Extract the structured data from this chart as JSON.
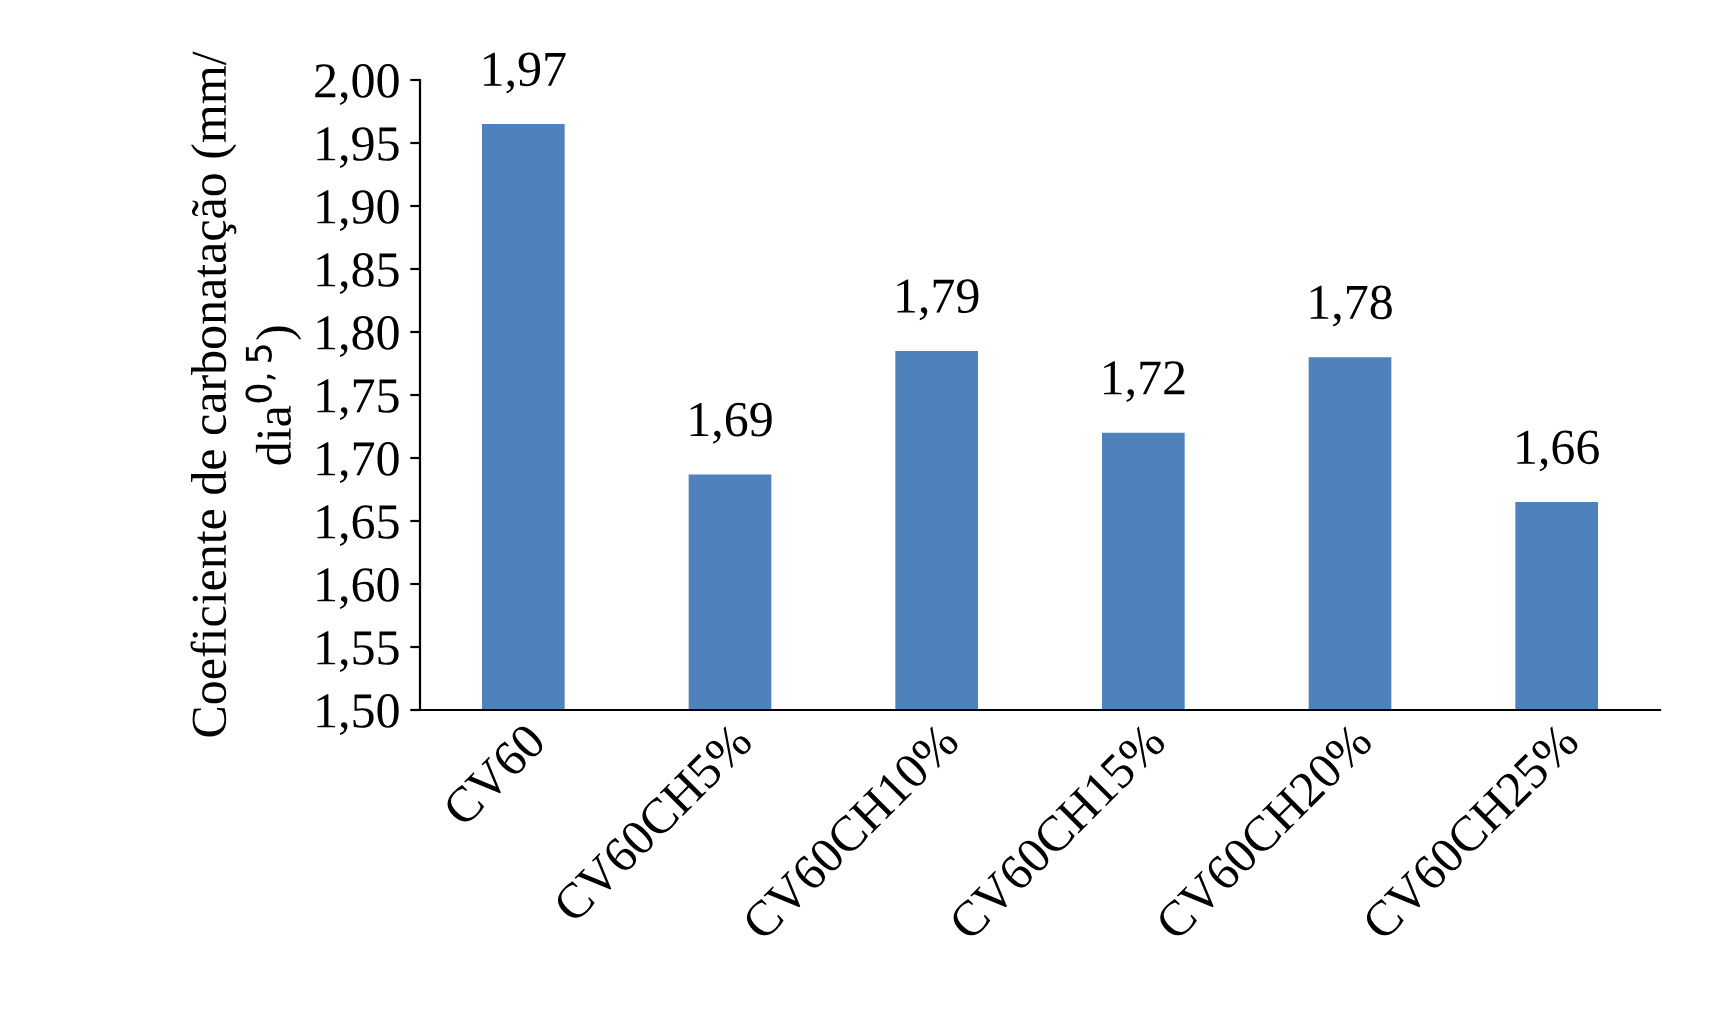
{
  "chart_data": {
    "type": "bar",
    "ylabel": "Coeficiente de carbonatação (mm/\ndia$^{0,5}$)",
    "categories": [
      "CV60",
      "CV60CH5%",
      "CV60CH10%",
      "CV60CH15%",
      "CV60CH20%",
      "CV60CH25%"
    ],
    "values": [
      1.965,
      1.687,
      1.785,
      1.72,
      1.78,
      1.665
    ],
    "value_labels": [
      "1,97",
      "1,69",
      "1,79",
      "1,72",
      "1,78",
      "1,66"
    ],
    "color": "#4f81bd",
    "ylim": [
      1.5,
      2.0
    ],
    "yticks": [
      {
        "value": 1.5,
        "label": "1,50"
      },
      {
        "value": 1.55,
        "label": "1,55"
      },
      {
        "value": 1.6,
        "label": "1,60"
      },
      {
        "value": 1.65,
        "label": "1,65"
      },
      {
        "value": 1.7,
        "label": "1,70"
      },
      {
        "value": 1.75,
        "label": "1,75"
      },
      {
        "value": 1.8,
        "label": "1,80"
      },
      {
        "value": 1.85,
        "label": "1,85"
      },
      {
        "value": 1.9,
        "label": "1,90"
      },
      {
        "value": 1.95,
        "label": "1,95"
      },
      {
        "value": 2.0,
        "label": "2,00"
      }
    ],
    "grid": false,
    "legend": false
  }
}
